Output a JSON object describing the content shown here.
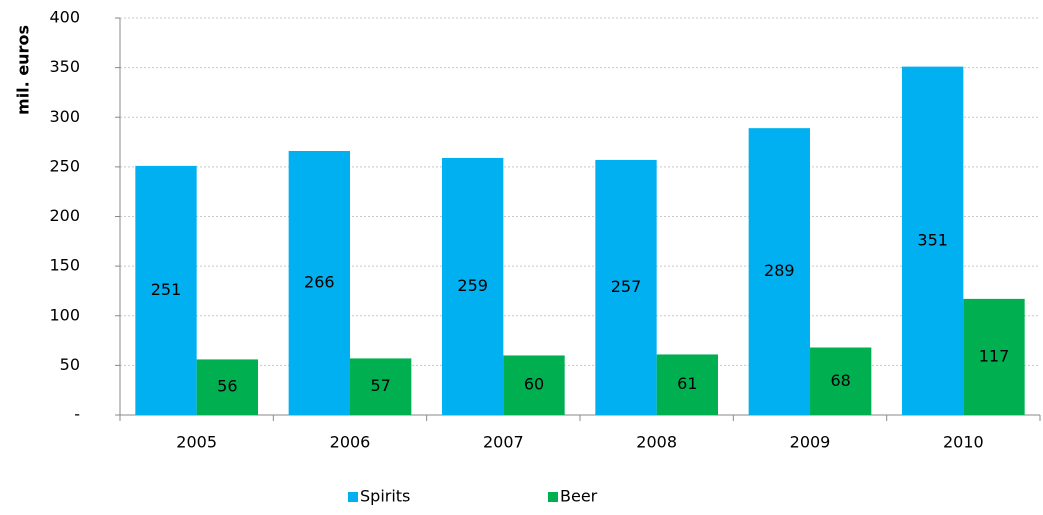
{
  "chart_data": {
    "type": "bar",
    "y_label": "mil. euros",
    "categories": [
      "2005",
      "2006",
      "2007",
      "2008",
      "2009",
      "2010"
    ],
    "series": [
      {
        "name": "Spirits",
        "color": "#00b0f0",
        "values": [
          251,
          266,
          259,
          257,
          289,
          351
        ]
      },
      {
        "name": "Beer",
        "color": "#00b050",
        "values": [
          56,
          57,
          60,
          61,
          68,
          117
        ]
      }
    ],
    "ylim": [
      0,
      400
    ],
    "yticks": [
      {
        "value": 0,
        "label": "-"
      },
      50,
      100,
      150,
      200,
      250,
      300,
      350,
      400
    ],
    "grid": true,
    "legend": "bottom"
  }
}
